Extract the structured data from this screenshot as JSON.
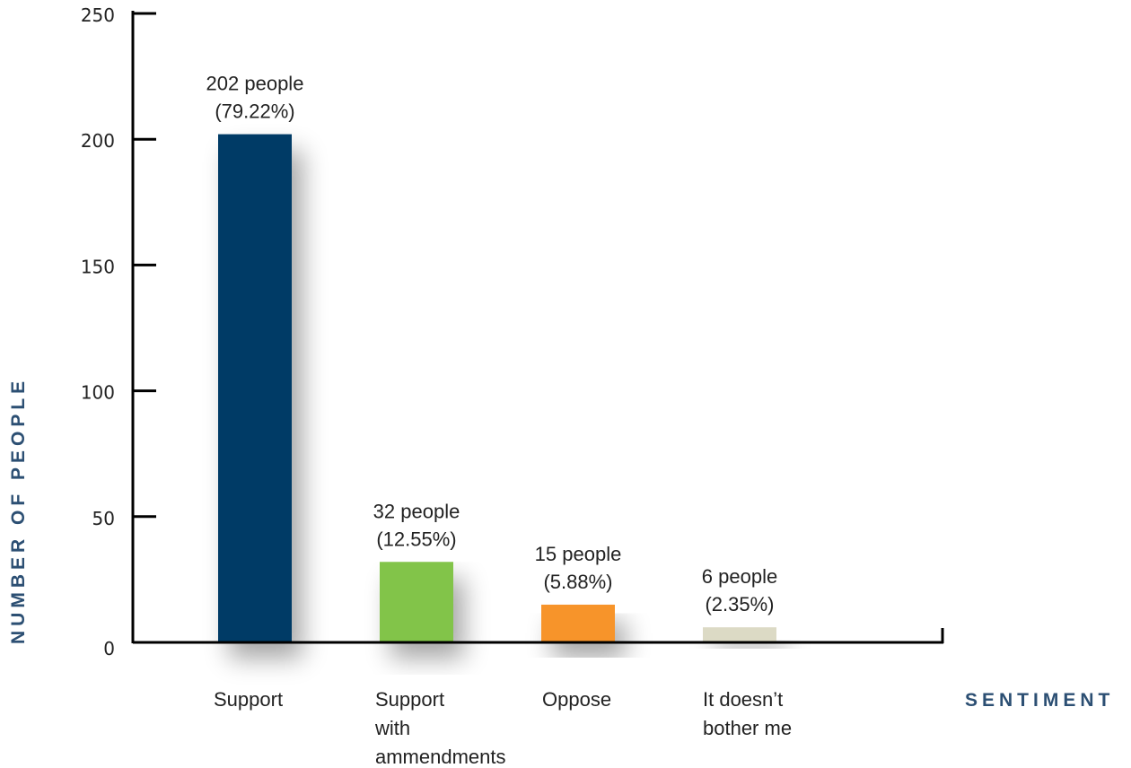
{
  "chart_data": {
    "type": "bar",
    "title": "",
    "xlabel": "SENTIMENT",
    "ylabel": "NUMBER OF PEOPLE",
    "ylim": [
      0,
      250
    ],
    "yticks": [
      0,
      50,
      100,
      150,
      200,
      250
    ],
    "grid": false,
    "categories": [
      [
        "Support"
      ],
      [
        "Support",
        "with",
        "ammendments"
      ],
      [
        "Oppose"
      ],
      [
        "It doesn’t",
        "bother me"
      ]
    ],
    "values": [
      202,
      32,
      15,
      6
    ],
    "data_labels": [
      [
        "202 people",
        "(79.22%)"
      ],
      [
        "32 people",
        "(12.55%)"
      ],
      [
        "15 people",
        "(5.88%)"
      ],
      [
        "6 people",
        "(2.35%)"
      ]
    ],
    "colors": [
      "#033a66",
      "#82c44a",
      "#f7942a",
      "#dcdac5"
    ],
    "axis_title_color": "#2c4f73"
  }
}
